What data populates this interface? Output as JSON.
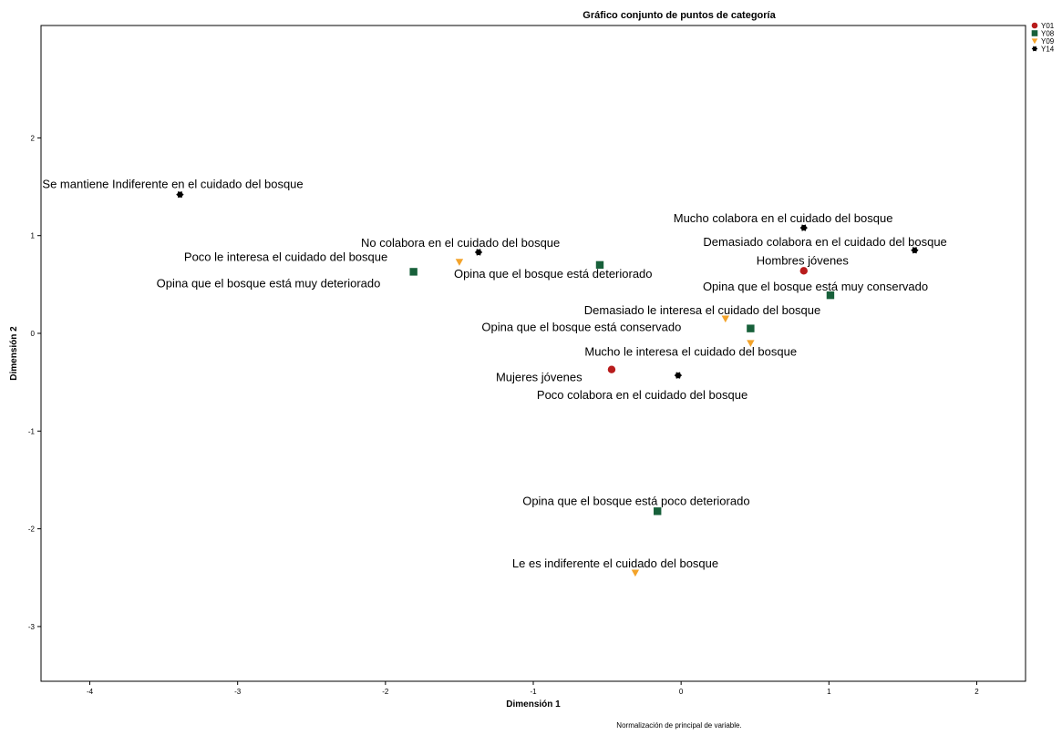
{
  "chart_data": {
    "type": "scatter",
    "title": "Gráfico conjunto de puntos de categoría",
    "xlabel": "Dimensión 1",
    "ylabel": "Dimensión 2",
    "footnote": "Normalización de principal de variable.",
    "xlim": [
      -4.33,
      2.33
    ],
    "ylim": [
      -3.56,
      3.15
    ],
    "xticks": [
      {
        "value": -4,
        "label": "-4"
      },
      {
        "value": -3,
        "label": "-3"
      },
      {
        "value": -2,
        "label": "-2"
      },
      {
        "value": -1,
        "label": "-1"
      },
      {
        "value": 0,
        "label": "0"
      },
      {
        "value": 1,
        "label": "1"
      },
      {
        "value": 2,
        "label": "2"
      }
    ],
    "yticks": [
      {
        "value": 2,
        "label": "2"
      },
      {
        "value": 1,
        "label": "1"
      },
      {
        "value": 0,
        "label": "0"
      },
      {
        "value": -1,
        "label": "-1"
      },
      {
        "value": -2,
        "label": "-2"
      },
      {
        "value": -3,
        "label": "-3"
      }
    ],
    "grid": false,
    "legend_position": "top-right",
    "series": [
      {
        "name": "Y01",
        "marker": "circle",
        "color": "#b81c1c",
        "points": [
          {
            "x": 0.83,
            "y": 0.64,
            "label": "Hombres jóvenes"
          },
          {
            "x": -0.47,
            "y": -0.37,
            "label": "Mujeres jóvenes"
          }
        ]
      },
      {
        "name": "Y08",
        "marker": "square",
        "color": "#17603a",
        "points": [
          {
            "x": -1.81,
            "y": 0.63,
            "label": "Opina que el bosque está muy deteriorado"
          },
          {
            "x": -0.55,
            "y": 0.7,
            "label": "Opina que el bosque está deteriorado"
          },
          {
            "x": 1.01,
            "y": 0.39,
            "label": "Opina que el bosque está muy conservado"
          },
          {
            "x": 0.47,
            "y": 0.05,
            "label": "Opina que el bosque está conservado"
          },
          {
            "x": -0.16,
            "y": -1.82,
            "label": "Opina que el bosque está poco deteriorado"
          }
        ]
      },
      {
        "name": "Y09",
        "marker": "triangle-down",
        "color": "#f3a32a",
        "points": [
          {
            "x": -1.5,
            "y": 0.73,
            "label": "Poco le interesa el cuidado del bosque"
          },
          {
            "x": 0.3,
            "y": 0.15,
            "label": "Demasiado le interesa el cuidado del bosque"
          },
          {
            "x": 0.47,
            "y": -0.1,
            "label": "Mucho le interesa el cuidado del bosque"
          },
          {
            "x": -0.31,
            "y": -2.45,
            "label": "Le es indiferente el cuidado del bosque"
          }
        ]
      },
      {
        "name": "Y14",
        "marker": "star",
        "color": "#000000",
        "points": [
          {
            "x": -3.39,
            "y": 1.42,
            "label": "Se mantiene Indiferente en el cuidado del bosque"
          },
          {
            "x": -1.37,
            "y": 0.83,
            "label": "No colabora en el cuidado del bosque"
          },
          {
            "x": 0.83,
            "y": 1.08,
            "label": "Mucho colabora en el cuidado del bosque"
          },
          {
            "x": 1.58,
            "y": 0.85,
            "label": "Demasiado colabora en el cuidado del bosque"
          },
          {
            "x": -0.02,
            "y": -0.43,
            "label": "Poco colabora en el cuidado del bosque"
          }
        ]
      }
    ]
  }
}
